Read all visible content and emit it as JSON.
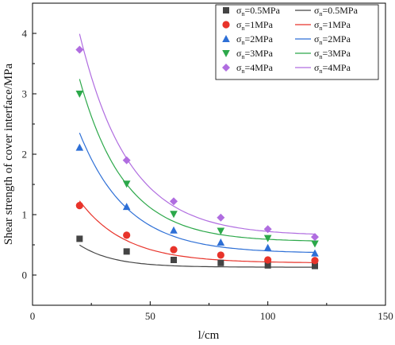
{
  "chart_data": {
    "type": "scatter",
    "xlabel": "l/cm",
    "ylabel": "Shear strength of cover interface/MPa",
    "xlim": [
      0,
      150
    ],
    "ylim": [
      -0.5,
      4.5
    ],
    "x_ticks": [
      0,
      50,
      100,
      150
    ],
    "y_ticks": [
      0,
      1,
      2,
      3,
      4
    ],
    "grid": false,
    "legend_position": "top-right",
    "x": [
      20,
      40,
      60,
      80,
      100,
      120
    ],
    "series": [
      {
        "legend_symbol": "σ",
        "legend_subscript": "n",
        "legend_value": "=0.5MPa",
        "marker": "square",
        "color": "#444444",
        "values": [
          0.6,
          0.39,
          0.25,
          0.2,
          0.16,
          0.15
        ],
        "fit": {
          "a": 1.46,
          "b": 0.069,
          "c": 0.13
        }
      },
      {
        "legend_symbol": "σ",
        "legend_subscript": "n",
        "legend_value": "=1MPa",
        "marker": "circle",
        "color": "#e8332a",
        "values": [
          1.15,
          0.66,
          0.42,
          0.33,
          0.25,
          0.24
        ],
        "fit": {
          "a": 2.85,
          "b": 0.051,
          "c": 0.2
        }
      },
      {
        "legend_symbol": "σ",
        "legend_subscript": "n",
        "legend_value": "=2MPa",
        "marker": "triangle-up",
        "color": "#2d6fd6",
        "values": [
          2.11,
          1.13,
          0.74,
          0.54,
          0.45,
          0.36
        ],
        "fit": {
          "a": 5.31,
          "b": 0.049,
          "c": 0.36
        }
      },
      {
        "legend_symbol": "σ",
        "legend_subscript": "n",
        "legend_value": "=3MPa",
        "marker": "triangle-down",
        "color": "#2ca84a",
        "values": [
          3.0,
          1.51,
          1.01,
          0.73,
          0.61,
          0.52
        ],
        "fit": {
          "a": 7.62,
          "b": 0.052,
          "c": 0.55
        }
      },
      {
        "legend_symbol": "σ",
        "legend_subscript": "n",
        "legend_value": "=4MPa",
        "marker": "diamond",
        "color": "#b06de0",
        "values": [
          3.73,
          1.9,
          1.22,
          0.95,
          0.76,
          0.63
        ],
        "fit": {
          "a": 8.73,
          "b": 0.048,
          "c": 0.65
        }
      }
    ]
  }
}
